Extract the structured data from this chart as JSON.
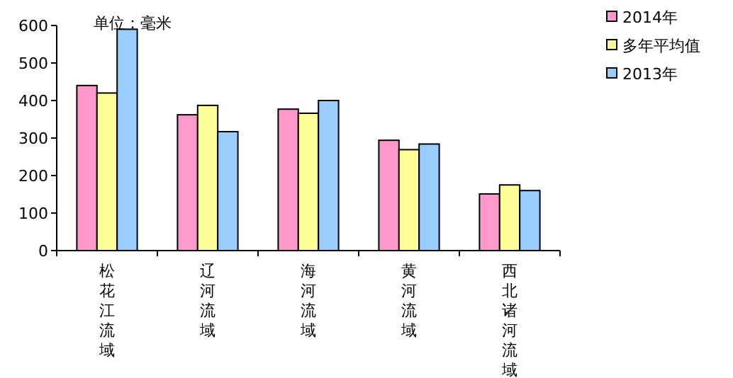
{
  "chart_data": {
    "type": "bar",
    "annotations": [
      "单位：毫米"
    ],
    "categories": [
      "松花江流域",
      "辽河流域",
      "海河流域",
      "黄河流域",
      "西北诸河流域"
    ],
    "series": [
      {
        "name": "2014年",
        "color": "#ff99cc",
        "values": [
          440,
          362,
          377,
          294,
          151
        ]
      },
      {
        "name": "多年平均值",
        "color": "#ffff99",
        "values": [
          420,
          387,
          366,
          269,
          175
        ]
      },
      {
        "name": "2013年",
        "color": "#99ccff",
        "values": [
          590,
          317,
          400,
          284,
          160
        ]
      }
    ],
    "ylim": [
      0,
      600
    ],
    "yticks": [
      0,
      100,
      200,
      300,
      400,
      500,
      600
    ],
    "grid": false,
    "legend": "top right"
  }
}
